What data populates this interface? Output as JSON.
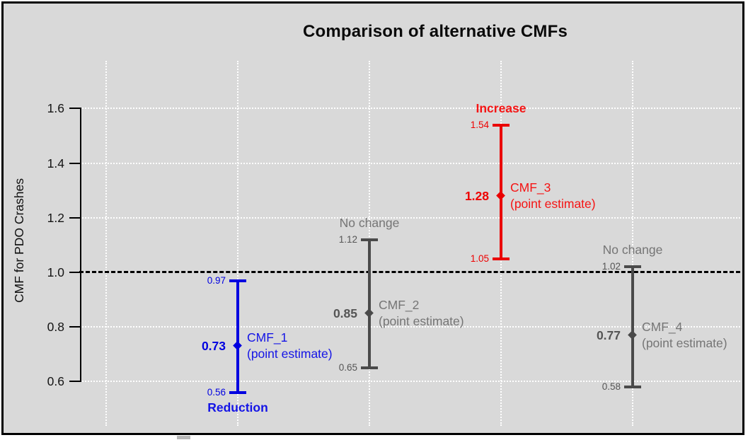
{
  "page": {
    "background_color": "#d9d9d9",
    "frame_border_color": "#000000",
    "gridline_color": "#ffffff",
    "reference_line_color": "#000000"
  },
  "chart_data": {
    "type": "errorbar",
    "title": "Comparison of alternative CMFs",
    "xlabel": "",
    "ylabel": "CMF for PDO Crashes",
    "ylim": [
      0.43,
      1.78
    ],
    "yticks": [
      0.6,
      0.8,
      1.0,
      1.2,
      1.4,
      1.6
    ],
    "reference_line": 1.0,
    "grid": true,
    "legend": "none",
    "categories": [
      "CMF_1",
      "CMF_2",
      "CMF_3",
      "CMF_4"
    ],
    "series": [
      {
        "name": "CMF_1",
        "point_estimate": 0.73,
        "ci_lower": 0.56,
        "ci_upper": 0.97,
        "direction": "Reduction",
        "direction_position": "below",
        "emphasis": true,
        "bar_color": "#0000e0",
        "value_color": "#0000e0",
        "label_color": "#1414e6",
        "name_label": "CMF_1",
        "name_sublabel": "(point estimate)"
      },
      {
        "name": "CMF_2",
        "point_estimate": 0.85,
        "ci_lower": 0.65,
        "ci_upper": 1.12,
        "direction": "No change",
        "direction_position": "above",
        "emphasis": false,
        "bar_color": "#4a4a4a",
        "value_color": "#555555",
        "label_color": "#757575",
        "name_label": "CMF_2",
        "name_sublabel": "(point estimate)"
      },
      {
        "name": "CMF_3",
        "point_estimate": 1.28,
        "ci_lower": 1.05,
        "ci_upper": 1.54,
        "direction": "Increase",
        "direction_position": "above",
        "emphasis": true,
        "bar_color": "#ea0000",
        "value_color": "#ee0000",
        "label_color": "#f51414",
        "name_label": "CMF_3",
        "name_sublabel": "(point estimate)"
      },
      {
        "name": "CMF_4",
        "point_estimate": 0.77,
        "ci_lower": 0.58,
        "ci_upper": 1.02,
        "direction": "No change",
        "direction_position": "above",
        "emphasis": false,
        "bar_color": "#4a4a4a",
        "value_color": "#555555",
        "label_color": "#757575",
        "name_label": "CMF_4",
        "name_sublabel": "(point estimate)"
      }
    ]
  }
}
